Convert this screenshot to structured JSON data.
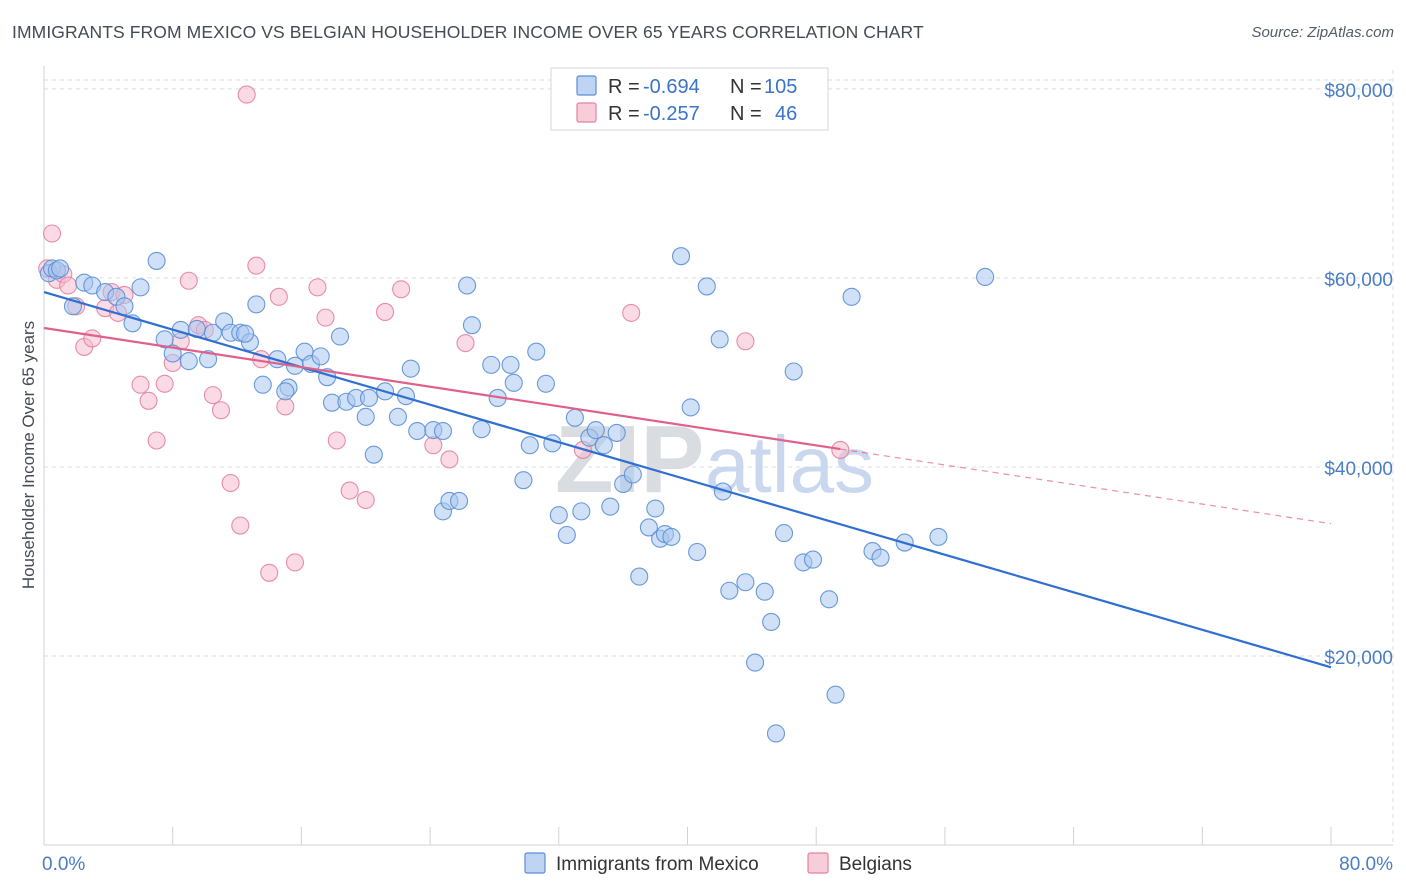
{
  "title": "IMMIGRANTS FROM MEXICO VS BELGIAN HOUSEHOLDER INCOME OVER 65 YEARS CORRELATION CHART",
  "source": "Source: ZipAtlas.com",
  "watermark": {
    "zip": "ZIP",
    "atlas": "atlas"
  },
  "colors": {
    "mexico_fill": "#a9c6ef",
    "mexico_stroke": "#5a8fd6",
    "mexico_line": "#2f6fcf",
    "belgian_fill": "#f5bccd",
    "belgian_stroke": "#e4829f",
    "belgian_line": "#e0608a",
    "grid": "#d9dde3",
    "axis_text": "#4a7dc4"
  },
  "legend": {
    "rows": [
      {
        "r_label": "R = ",
        "r_value": "-0.694",
        "n_label": "N = ",
        "n_value": "105"
      },
      {
        "r_label": "R = ",
        "r_value": "-0.257",
        "n_label": "N = ",
        "n_value": "46"
      }
    ]
  },
  "chart_data": {
    "type": "scatter",
    "xlabel": "",
    "ylabel": "Householder Income Over 65 years",
    "xlim": [
      0,
      80
    ],
    "ylim": [
      0,
      82000
    ],
    "x_tick_labels": [
      "0.0%",
      "80.0%"
    ],
    "y_ticks": [
      20000,
      40000,
      60000,
      80000
    ],
    "y_tick_labels": [
      "$20,000",
      "$40,000",
      "$60,000",
      "$80,000"
    ],
    "grid": true,
    "legend_position": "top-center",
    "series": [
      {
        "name": "Immigrants from Mexico",
        "trend": {
          "x0": 0,
          "y0": 58500,
          "x1": 80,
          "y1": 18800,
          "dashed_from": null
        },
        "points": [
          [
            0.3,
            60500
          ],
          [
            0.5,
            61000
          ],
          [
            0.8,
            60800
          ],
          [
            1.0,
            61000
          ],
          [
            1.8,
            57000
          ],
          [
            2.5,
            59500
          ],
          [
            3.0,
            59200
          ],
          [
            3.8,
            58500
          ],
          [
            4.5,
            58000
          ],
          [
            5.0,
            57000
          ],
          [
            5.5,
            55200
          ],
          [
            6.0,
            59000
          ],
          [
            7.0,
            61800
          ],
          [
            7.5,
            53500
          ],
          [
            8.0,
            52000
          ],
          [
            8.5,
            54500
          ],
          [
            9.0,
            51200
          ],
          [
            10.2,
            51400
          ],
          [
            10.5,
            54200
          ],
          [
            11.2,
            55400
          ],
          [
            11.6,
            54200
          ],
          [
            12.2,
            54200
          ],
          [
            12.8,
            53200
          ],
          [
            13.2,
            57200
          ],
          [
            13.6,
            48700
          ],
          [
            14.5,
            51400
          ],
          [
            15.2,
            48400
          ],
          [
            15.6,
            50700
          ],
          [
            16.2,
            52200
          ],
          [
            16.6,
            50900
          ],
          [
            17.2,
            51700
          ],
          [
            17.6,
            49500
          ],
          [
            17.9,
            46800
          ],
          [
            18.4,
            53800
          ],
          [
            18.8,
            46900
          ],
          [
            19.4,
            47300
          ],
          [
            20.0,
            45300
          ],
          [
            20.5,
            41300
          ],
          [
            21.2,
            48000
          ],
          [
            22.0,
            45300
          ],
          [
            22.5,
            47500
          ],
          [
            22.8,
            50400
          ],
          [
            23.2,
            43800
          ],
          [
            24.2,
            43900
          ],
          [
            24.8,
            35300
          ],
          [
            25.2,
            36400
          ],
          [
            25.8,
            36400
          ],
          [
            26.3,
            59200
          ],
          [
            26.6,
            55000
          ],
          [
            27.2,
            44000
          ],
          [
            27.8,
            50800
          ],
          [
            28.2,
            47300
          ],
          [
            29.0,
            50800
          ],
          [
            29.8,
            38600
          ],
          [
            30.2,
            42300
          ],
          [
            30.6,
            52200
          ],
          [
            31.2,
            48800
          ],
          [
            31.6,
            42500
          ],
          [
            32.0,
            34900
          ],
          [
            32.5,
            32800
          ],
          [
            33.0,
            45200
          ],
          [
            33.4,
            35300
          ],
          [
            33.9,
            43100
          ],
          [
            34.3,
            43900
          ],
          [
            34.8,
            42300
          ],
          [
            35.2,
            35800
          ],
          [
            35.6,
            43600
          ],
          [
            36.0,
            38200
          ],
          [
            36.6,
            39200
          ],
          [
            37.0,
            28400
          ],
          [
            37.6,
            33600
          ],
          [
            38.0,
            35600
          ],
          [
            38.3,
            32400
          ],
          [
            38.6,
            32900
          ],
          [
            39.0,
            32600
          ],
          [
            39.6,
            62300
          ],
          [
            40.2,
            46300
          ],
          [
            40.6,
            31000
          ],
          [
            41.2,
            59100
          ],
          [
            42.0,
            53500
          ],
          [
            42.2,
            37400
          ],
          [
            42.6,
            26900
          ],
          [
            43.6,
            27800
          ],
          [
            44.2,
            19300
          ],
          [
            44.8,
            26800
          ],
          [
            45.2,
            23600
          ],
          [
            45.5,
            11800
          ],
          [
            46.0,
            33000
          ],
          [
            46.6,
            50100
          ],
          [
            47.2,
            29900
          ],
          [
            47.8,
            30200
          ],
          [
            48.8,
            26000
          ],
          [
            49.2,
            15900
          ],
          [
            50.2,
            58000
          ],
          [
            51.5,
            31100
          ],
          [
            52.0,
            30400
          ],
          [
            53.5,
            32000
          ],
          [
            55.6,
            32600
          ],
          [
            58.5,
            60100
          ],
          [
            15.0,
            48000
          ],
          [
            24.8,
            43800
          ],
          [
            20.2,
            47300
          ],
          [
            9.5,
            54600
          ],
          [
            12.5,
            54100
          ],
          [
            29.2,
            48900
          ]
        ]
      },
      {
        "name": "Belgians",
        "trend": {
          "x0": 0,
          "y0": 54700,
          "x1": 80,
          "y1": 34000,
          "dashed_from": 49.5
        },
        "points": [
          [
            0.2,
            61000
          ],
          [
            0.5,
            64700
          ],
          [
            0.8,
            59800
          ],
          [
            1.2,
            60400
          ],
          [
            1.5,
            59200
          ],
          [
            2.0,
            57000
          ],
          [
            2.5,
            52700
          ],
          [
            3.0,
            53600
          ],
          [
            3.8,
            56800
          ],
          [
            4.2,
            58500
          ],
          [
            4.6,
            56300
          ],
          [
            5.0,
            58200
          ],
          [
            6.0,
            48700
          ],
          [
            6.5,
            47000
          ],
          [
            7.0,
            42800
          ],
          [
            7.5,
            48800
          ],
          [
            8.0,
            51000
          ],
          [
            8.5,
            53300
          ],
          [
            9.0,
            59700
          ],
          [
            9.6,
            55000
          ],
          [
            10.0,
            54500
          ],
          [
            10.5,
            47600
          ],
          [
            11.0,
            46000
          ],
          [
            11.6,
            38300
          ],
          [
            12.2,
            33800
          ],
          [
            12.6,
            79400
          ],
          [
            13.2,
            61300
          ],
          [
            13.5,
            51400
          ],
          [
            14.0,
            28800
          ],
          [
            14.6,
            58000
          ],
          [
            15.0,
            46400
          ],
          [
            15.6,
            29900
          ],
          [
            17.0,
            59000
          ],
          [
            17.5,
            55800
          ],
          [
            18.2,
            42800
          ],
          [
            19.0,
            37500
          ],
          [
            20.0,
            36500
          ],
          [
            21.2,
            56400
          ],
          [
            22.2,
            58800
          ],
          [
            24.2,
            42300
          ],
          [
            25.2,
            40800
          ],
          [
            26.2,
            53100
          ],
          [
            33.5,
            41800
          ],
          [
            36.5,
            56300
          ],
          [
            43.6,
            53300
          ],
          [
            49.5,
            41800
          ]
        ]
      }
    ]
  },
  "bottom_legend": [
    "Immigrants from Mexico",
    "Belgians"
  ]
}
